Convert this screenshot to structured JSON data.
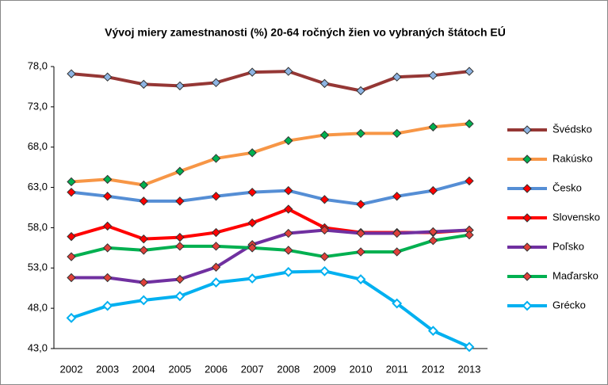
{
  "chart_data": {
    "type": "line",
    "title": "Vývoj miery zamestnanosti  (%) 20-64  ročných  žien vo vybraných  štátoch  EÚ",
    "categories": [
      "2002",
      "2003",
      "2004",
      "2005",
      "2006",
      "2007",
      "2008",
      "2009",
      "2010",
      "2011",
      "2012",
      "2013"
    ],
    "ylim": [
      43,
      78
    ],
    "yticks": [
      {
        "value": 43,
        "label": "43,0"
      },
      {
        "value": 48,
        "label": "48,0"
      },
      {
        "value": 53,
        "label": "53,0"
      },
      {
        "value": 58,
        "label": "58,0"
      },
      {
        "value": 63,
        "label": "63,0"
      },
      {
        "value": 68,
        "label": "68,0"
      },
      {
        "value": 73,
        "label": "73,0"
      },
      {
        "value": 78,
        "label": "78,0"
      }
    ],
    "grid": false,
    "legend": "right",
    "series": [
      {
        "name": "Švédsko",
        "color": "#953735",
        "marker_color": "#8eb4e3",
        "values": [
          77.1,
          76.7,
          75.8,
          75.6,
          76.0,
          77.3,
          77.4,
          75.9,
          75.0,
          76.7,
          76.9,
          77.4
        ]
      },
      {
        "name": "Rakúsko",
        "color": "#f79646",
        "marker_color": "#00b050",
        "values": [
          63.7,
          64.0,
          63.3,
          65.0,
          66.6,
          67.3,
          68.8,
          69.5,
          69.7,
          69.7,
          70.5,
          70.9
        ]
      },
      {
        "name": "Česko",
        "color": "#558ed5",
        "marker_color": "#ff0000",
        "values": [
          62.4,
          61.9,
          61.3,
          61.3,
          61.9,
          62.4,
          62.6,
          61.5,
          60.9,
          61.9,
          62.6,
          63.8
        ]
      },
      {
        "name": "Slovensko",
        "color": "#ff0000",
        "marker_color": "#ff0000",
        "values": [
          56.9,
          58.2,
          56.6,
          56.8,
          57.4,
          58.6,
          60.3,
          58.0,
          57.4,
          57.4,
          57.4,
          57.7
        ]
      },
      {
        "name": "Poľsko",
        "color": "#7030a0",
        "marker_color": "#e0403a",
        "values": [
          51.8,
          51.8,
          51.2,
          51.6,
          53.1,
          55.9,
          57.3,
          57.7,
          57.3,
          57.3,
          57.5,
          57.7
        ]
      },
      {
        "name": "Maďarsko",
        "color": "#00b050",
        "marker_color": "#e0403a",
        "values": [
          54.4,
          55.5,
          55.2,
          55.7,
          55.7,
          55.5,
          55.2,
          54.4,
          55.0,
          55.0,
          56.4,
          57.1
        ]
      },
      {
        "name": "Grécko",
        "color": "#00b0f0",
        "marker_color": "#ffffff",
        "values": [
          46.8,
          48.3,
          49.0,
          49.5,
          51.2,
          51.7,
          52.5,
          52.6,
          51.6,
          48.6,
          45.2,
          43.2
        ]
      }
    ]
  }
}
